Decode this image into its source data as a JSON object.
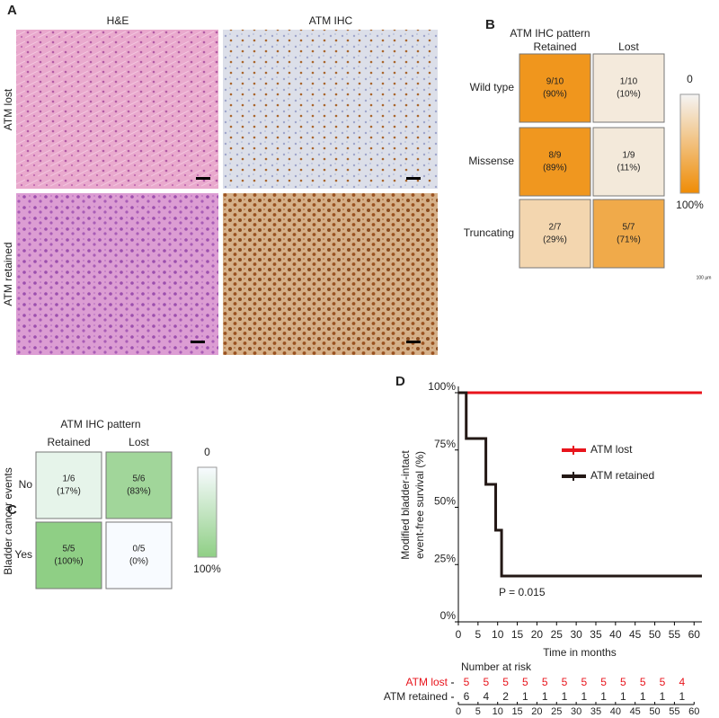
{
  "panel_a": {
    "label": "A",
    "columns": [
      "H&E",
      "ATM IHC"
    ],
    "rows": [
      "ATM  lost",
      "ATM  retained"
    ]
  },
  "scale_bar_label": "100 µm",
  "chart_data": [
    {
      "type": "heatmap",
      "panel": "B",
      "title": "ATM IHC pattern",
      "columns": [
        "Retained",
        "Lost"
      ],
      "rows": [
        "Wild type",
        "Missense",
        "Truncating"
      ],
      "counts": [
        [
          "9/10",
          "1/10"
        ],
        [
          "8/9",
          "1/9"
        ],
        [
          "2/7",
          "5/7"
        ]
      ],
      "values": [
        [
          90,
          10
        ],
        [
          89,
          11
        ],
        [
          29,
          71
        ]
      ],
      "value_labels": [
        [
          "(90%)",
          "(10%)"
        ],
        [
          "(89%)",
          "(11%)"
        ],
        [
          "(29%)",
          "(71%)"
        ]
      ],
      "colors": [
        "#f4f4f4",
        "#ef8c05"
      ],
      "clim": [
        0,
        100
      ],
      "cticks": [
        0,
        {
          "value": 100,
          "label": "100%"
        }
      ]
    },
    {
      "type": "heatmap",
      "panel": "C",
      "title": "ATM IHC pattern",
      "ylabel": "Bladder cancer events",
      "columns": [
        "Retained",
        "Lost"
      ],
      "rows": [
        "No",
        "Yes"
      ],
      "counts": [
        [
          "1/6",
          "5/6"
        ],
        [
          "5/5",
          "0/5"
        ]
      ],
      "values": [
        [
          17,
          83
        ],
        [
          100,
          0
        ]
      ],
      "value_labels": [
        [
          "(17%)",
          "(83%)"
        ],
        [
          "(100%)",
          "(0%)"
        ]
      ],
      "colors": [
        "#f8fbff",
        "#8fcf85"
      ],
      "clim": [
        0,
        100
      ],
      "cticks": [
        0,
        {
          "value": 100,
          "label": "100%"
        }
      ]
    },
    {
      "type": "line",
      "panel": "D",
      "step": true,
      "ylabel": [
        "Modified bladder-intact",
        "event-free survival (%)"
      ],
      "xlabel": "Time in months",
      "xlim": [
        0,
        62
      ],
      "ylim": [
        0,
        100
      ],
      "xticks": [
        0,
        5,
        10,
        15,
        20,
        25,
        30,
        35,
        40,
        45,
        50,
        55,
        60
      ],
      "yticks": [
        {
          "value": 0,
          "label": "0%"
        },
        {
          "value": 25,
          "label": "25%"
        },
        {
          "value": 50,
          "label": "50%"
        },
        {
          "value": 75,
          "label": "75%"
        },
        {
          "value": 100,
          "label": "100%"
        }
      ],
      "series": [
        {
          "name": "ATM lost",
          "color": "#e8141c",
          "x": [
            0,
            62
          ],
          "values": [
            100,
            100
          ]
        },
        {
          "name": "ATM retained",
          "color": "#231815",
          "x": [
            0,
            2,
            7,
            9.5,
            11,
            62
          ],
          "values": [
            100,
            80,
            60,
            40,
            20,
            20
          ]
        }
      ],
      "annotation": "P = 0.015",
      "risk_table": {
        "title": "Number at risk",
        "rows": [
          [
            5,
            5,
            5,
            5,
            5,
            5,
            5,
            5,
            5,
            5,
            5,
            4
          ],
          [
            6,
            4,
            2,
            1,
            1,
            1,
            1,
            1,
            1,
            1,
            1,
            1
          ]
        ]
      }
    }
  ]
}
